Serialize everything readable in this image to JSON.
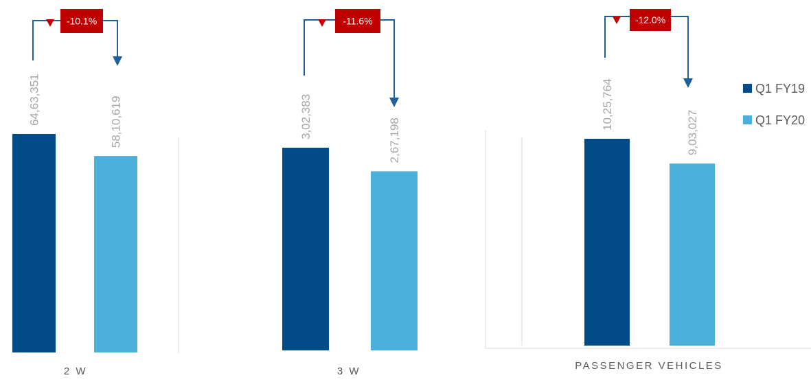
{
  "chart_data": [
    {
      "type": "bar",
      "categories": [
        "2 W"
      ],
      "series": [
        {
          "name": "Q1 FY19",
          "values": [
            6463351
          ],
          "value_labels": [
            "64,63,351"
          ]
        },
        {
          "name": "Q1 FY20",
          "values": [
            5810619
          ],
          "value_labels": [
            "58,10,619"
          ]
        }
      ],
      "annotation": {
        "label": "-10.1%",
        "direction": "down"
      },
      "ylim": [
        0,
        6463351
      ]
    },
    {
      "type": "bar",
      "categories": [
        "3 W"
      ],
      "series": [
        {
          "name": "Q1 FY19",
          "values": [
            302383
          ],
          "value_labels": [
            "3,02,383"
          ]
        },
        {
          "name": "Q1 FY20",
          "values": [
            267198
          ],
          "value_labels": [
            "2,67,198"
          ]
        }
      ],
      "annotation": {
        "label": "-11.6%",
        "direction": "down"
      },
      "ylim": [
        0,
        302383
      ]
    },
    {
      "type": "bar",
      "categories": [
        "PASSENGER VEHICLES"
      ],
      "series": [
        {
          "name": "Q1 FY19",
          "values": [
            1025764
          ],
          "value_labels": [
            "10,25,764"
          ]
        },
        {
          "name": "Q1 FY20",
          "values": [
            903027
          ],
          "value_labels": [
            "9,03,027"
          ]
        }
      ],
      "annotation": {
        "label": "-12.0%",
        "direction": "down"
      },
      "ylim": [
        0,
        1025764
      ]
    }
  ],
  "legend": {
    "position": "right",
    "items": [
      {
        "name": "Q1 FY19",
        "color": "#004b87"
      },
      {
        "name": "Q1 FY20",
        "color": "#4bafdc"
      }
    ]
  },
  "colors": {
    "q1_fy19": "#004b87",
    "q1_fy20": "#4bafdc",
    "badge": "#c00000",
    "arrow": "#1f5f9a",
    "axis": "#d9d9d9"
  }
}
